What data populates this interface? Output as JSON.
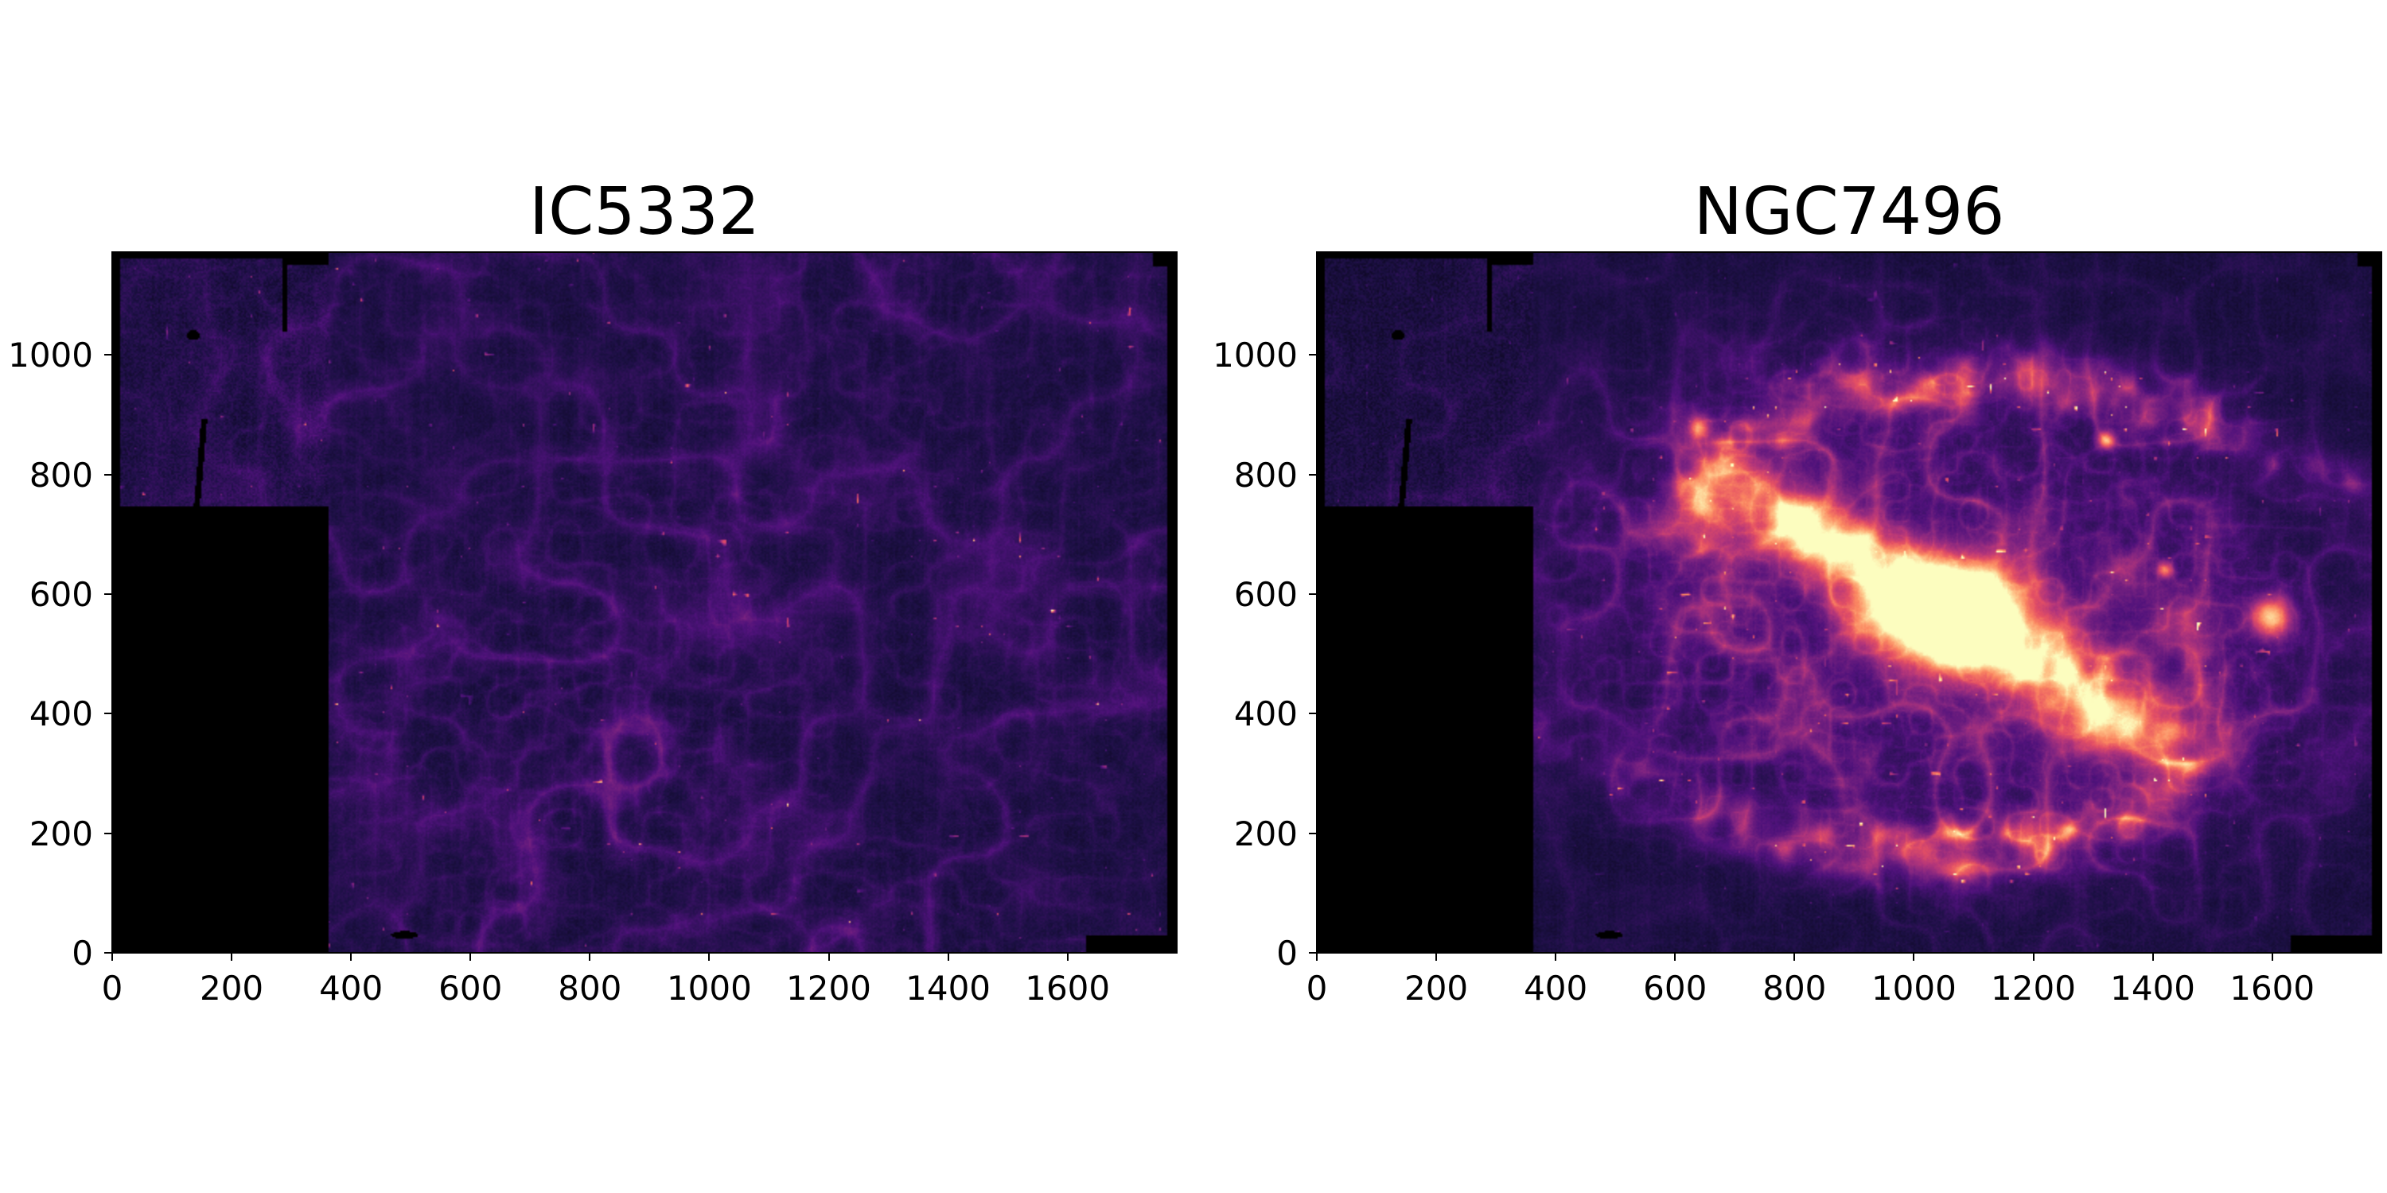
{
  "figure": {
    "background": "#ffffff",
    "mask_color": "#000000"
  },
  "colormap": {
    "name": "magma",
    "stops": [
      "#000004",
      "#1c1044",
      "#4f127b",
      "#812581",
      "#b5367a",
      "#e55064",
      "#fb8761",
      "#fec287",
      "#fcfdbf"
    ]
  },
  "chart_data": [
    {
      "type": "heatmap",
      "title": "IC5332",
      "xlim": [
        0,
        1783
      ],
      "ylim": [
        0,
        1172
      ],
      "xticks": [
        0,
        200,
        400,
        600,
        800,
        1000,
        1200,
        1400,
        1600
      ],
      "xtick_labels": [
        "0",
        "200",
        "400",
        "600",
        "800",
        "1000",
        "1200",
        "1400",
        "1600"
      ],
      "yticks": [
        0,
        200,
        400,
        600,
        800,
        1000
      ],
      "ytick_labels": [
        "0",
        "200",
        "400",
        "600",
        "800",
        "1000"
      ],
      "grid": false,
      "legend": "none",
      "colorbar": false
    },
    {
      "type": "heatmap",
      "title": "NGC7496",
      "xlim": [
        0,
        1783
      ],
      "ylim": [
        0,
        1172
      ],
      "xticks": [
        0,
        200,
        400,
        600,
        800,
        1000,
        1200,
        1400,
        1600
      ],
      "xtick_labels": [
        "0",
        "200",
        "400",
        "600",
        "800",
        "1000",
        "1200",
        "1400",
        "1600"
      ],
      "yticks": [
        0,
        200,
        400,
        600,
        800,
        1000
      ],
      "ytick_labels": [
        "0",
        "200",
        "400",
        "600",
        "800",
        "1000"
      ],
      "grid": false,
      "legend": "none",
      "colorbar": false
    }
  ]
}
